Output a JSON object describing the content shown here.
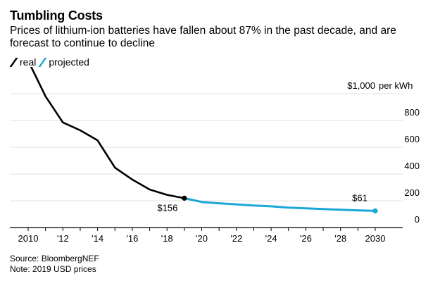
{
  "chart_data": {
    "type": "line",
    "title": "Tumbling Costs",
    "subtitle": "Prices of lithium-ion batteries have fallen about 87% in the past decade, and are forecast to continue to decline",
    "ylabel": "per kWh",
    "ylim": [
      0,
      1000
    ],
    "xlim": [
      2010,
      2030
    ],
    "y_ticks": [
      {
        "value": 0,
        "label": "0"
      },
      {
        "value": 200,
        "label": "200"
      },
      {
        "value": 400,
        "label": "400"
      },
      {
        "value": 600,
        "label": "600"
      },
      {
        "value": 800,
        "label": "800"
      },
      {
        "value": 1000,
        "label": "$1,000"
      }
    ],
    "x_ticks": [
      {
        "value": 2010,
        "label": "2010"
      },
      {
        "value": 2012,
        "label": "'12"
      },
      {
        "value": 2014,
        "label": "'14"
      },
      {
        "value": 2016,
        "label": "'16"
      },
      {
        "value": 2018,
        "label": "'18"
      },
      {
        "value": 2020,
        "label": "'20"
      },
      {
        "value": 2022,
        "label": "'22"
      },
      {
        "value": 2024,
        "label": "'24"
      },
      {
        "value": 2026,
        "label": "'26"
      },
      {
        "value": 2028,
        "label": "'28"
      },
      {
        "value": 2030,
        "label": "2030"
      }
    ],
    "grid": true,
    "legend_position": "top-left",
    "series": [
      {
        "name": "real",
        "color": "#000000",
        "x": [
          2010,
          2011,
          2012,
          2013,
          2014,
          2015,
          2016,
          2017,
          2018,
          2019
        ],
        "y": [
          1183,
          917,
          722,
          663,
          588,
          384,
          295,
          221,
          181,
          156
        ]
      },
      {
        "name": "projected",
        "color": "#1aa7d8",
        "x": [
          2019,
          2020,
          2021,
          2022,
          2023,
          2024,
          2025,
          2026,
          2027,
          2028,
          2029,
          2030
        ],
        "y": [
          156,
          128,
          118,
          110,
          101,
          95,
          86,
          80,
          75,
          70,
          65,
          61
        ]
      }
    ],
    "annotations": [
      {
        "text": "$156",
        "x": 2019,
        "y": 156,
        "series": "real"
      },
      {
        "text": "$61",
        "x": 2030,
        "y": 61,
        "series": "projected"
      }
    ]
  },
  "footer": {
    "source": "Source: BloombergNEF",
    "note": "Note: 2019 USD prices"
  }
}
